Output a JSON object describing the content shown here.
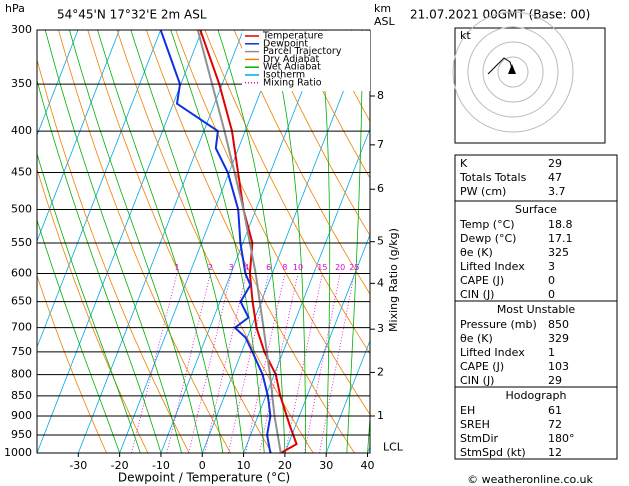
{
  "chart_data": {
    "type": "skewt",
    "title": "54°45'N 17°32'E 2m ASL",
    "y_label": "hPa",
    "x_label": "Dewpoint / Temperature (°C)",
    "y2_label": "Mixing Ratio (g/kg)",
    "date": "21.07.2021 00GMT (Base: 00)",
    "xlim": [
      -40,
      40.6
    ],
    "xticks": [
      -30,
      -20,
      -10,
      0,
      10,
      20,
      30,
      40
    ],
    "ylim": [
      1000,
      300
    ],
    "yticks": [
      300,
      350,
      400,
      450,
      500,
      550,
      600,
      650,
      700,
      750,
      800,
      850,
      900,
      950,
      1000
    ],
    "log_scale": true,
    "series": [
      {
        "name": "Temperature",
        "color": "#e00000",
        "pressure": [
          1000,
          975,
          925,
          850,
          800,
          750,
          700,
          650,
          600,
          550,
          500,
          450,
          400,
          350,
          300
        ],
        "values": [
          19,
          22,
          18.6,
          13.5,
          10.4,
          5.5,
          1.3,
          -2.1,
          -5.4,
          -7.7,
          -13,
          -17.8,
          -23.2,
          -30.7,
          -40.4
        ]
      },
      {
        "name": "Dewpoint",
        "color": "#1030e0",
        "pressure": [
          1000,
          950,
          900,
          850,
          800,
          750,
          720,
          700,
          680,
          650,
          620,
          600,
          550,
          500,
          450,
          420,
          400,
          370,
          350,
          300
        ],
        "values": [
          16.5,
          14,
          13,
          10.5,
          7.2,
          2.6,
          -0.4,
          -3.9,
          -1.6,
          -5,
          -4.2,
          -6.5,
          -10.6,
          -14.3,
          -20.3,
          -25.5,
          -26.6,
          -39.1,
          -40.2,
          -50
        ]
      },
      {
        "name": "Parcel Trajectory",
        "color": "#909090",
        "pressure": [
          1000,
          900,
          800,
          700,
          600,
          500,
          400,
          300
        ],
        "values": [
          19,
          14,
          9,
          3,
          -4,
          -13,
          -25,
          -41
        ]
      }
    ],
    "reference_lines": [
      {
        "name": "Dry Adiabat",
        "color": "#f08000"
      },
      {
        "name": "Wet Adiabat",
        "color": "#00b000"
      },
      {
        "name": "Isotherm",
        "color": "#00a8e8"
      },
      {
        "name": "Mixing Ratio",
        "color": "#e000e0"
      }
    ],
    "mixing_ratios": [
      1,
      2,
      3,
      4,
      6,
      8,
      10,
      15,
      20,
      25
    ],
    "mixing_label_pressure": 600,
    "km_axis": {
      "labels": [
        "km",
        "ASL"
      ],
      "ticks": [
        {
          "value": 1,
          "pressure": 900
        },
        {
          "value": 2,
          "pressure": 795
        },
        {
          "value": 3,
          "pressure": 703
        },
        {
          "value": 4,
          "pressure": 617
        },
        {
          "value": 5,
          "pressure": 548
        },
        {
          "value": 6,
          "pressure": 472
        },
        {
          "value": 7,
          "pressure": 416
        },
        {
          "value": 8,
          "pressure": 362
        }
      ]
    },
    "lcl": {
      "label": "LCL",
      "pressure": 985
    }
  },
  "panels": [
    {
      "rows": [
        [
          "K",
          29
        ],
        [
          "Totals Totals",
          47
        ],
        [
          "PW (cm)",
          3.7
        ]
      ]
    },
    {
      "title": "Surface",
      "rows": [
        [
          "Temp (°C)",
          18.8
        ],
        [
          "Dewp (°C)",
          17.1
        ],
        [
          "θe (K)",
          325
        ],
        [
          "Lifted Index",
          3
        ],
        [
          "CAPE (J)",
          0
        ],
        [
          "CIN (J)",
          0
        ]
      ]
    },
    {
      "title": "Most Unstable",
      "rows": [
        [
          "Pressure (mb)",
          850
        ],
        [
          "θe (K)",
          329
        ],
        [
          "Lifted Index",
          1
        ],
        [
          "CAPE (J)",
          103
        ],
        [
          "CIN (J)",
          29
        ]
      ]
    },
    {
      "title": "Hodograph",
      "rows": [
        [
          "EH",
          61
        ],
        [
          "SREH",
          72
        ],
        [
          "StmDir",
          "180°"
        ],
        [
          "StmSpd (kt)",
          12
        ]
      ]
    }
  ],
  "hodograph_unit": "kt",
  "footer": "© weatheronline.co.uk"
}
